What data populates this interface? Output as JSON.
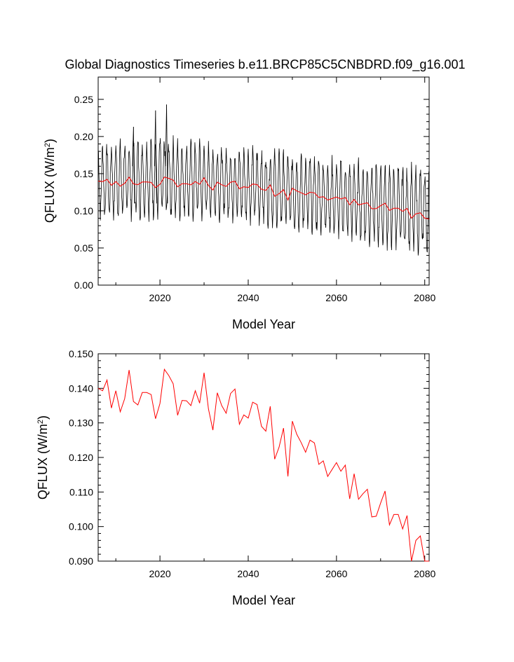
{
  "title": "Global Diagnostics Timeseries b.e11.BRCP85C5CNBDRD.f09_g16.001",
  "colors": {
    "monthly": "#000000",
    "annual": "#ff0000",
    "axis": "#000000"
  },
  "chart_data": [
    {
      "type": "line",
      "panel": "monthly-with-annual-mean",
      "xlabel": "Model Year",
      "ylabel": {
        "base": "QFLUX (W/m",
        "sup": "2",
        "close": ")"
      },
      "xlim": [
        2006,
        2081
      ],
      "ylim": [
        0.0,
        0.28
      ],
      "xticks": [
        2020,
        2040,
        2060,
        2080
      ],
      "yticks": [
        0.0,
        0.05,
        0.1,
        0.15,
        0.2,
        0.25
      ],
      "ytick_labels": [
        "0.00",
        "0.05",
        "0.10",
        "0.15",
        "0.20",
        "0.25"
      ],
      "series": [
        {
          "name": "monthly",
          "color": "#000000",
          "seasonal_cycle": {
            "years": [
              2006,
              2020,
              2040,
              2060,
              2080
            ],
            "max": [
              0.195,
              0.205,
              0.19,
              0.175,
              0.165
            ],
            "min": [
              0.085,
              0.085,
              0.08,
              0.06,
              0.035
            ]
          },
          "notable_peaks": [
            {
              "x": 2014,
              "y": 0.213
            },
            {
              "x": 2019,
              "y": 0.235
            },
            {
              "x": 2021.5,
              "y": 0.243
            }
          ]
        },
        {
          "name": "annual mean",
          "color": "#ff0000",
          "ref": "annual_means"
        }
      ]
    },
    {
      "type": "line",
      "panel": "annual-mean",
      "xlabel": "Model Year",
      "ylabel": {
        "base": "QFLUX (W/m",
        "sup": "2",
        "close": ")"
      },
      "xlim": [
        2006,
        2081
      ],
      "ylim": [
        0.09,
        0.15
      ],
      "xticks": [
        2020,
        2040,
        2060,
        2080
      ],
      "yticks": [
        0.09,
        0.1,
        0.11,
        0.12,
        0.13,
        0.14,
        0.15
      ],
      "ytick_labels": [
        "0.090",
        "0.100",
        "0.110",
        "0.120",
        "0.130",
        "0.140",
        "0.150"
      ],
      "series": [
        {
          "name": "annual mean",
          "color": "#ff0000",
          "ref": "annual_means"
        }
      ]
    }
  ],
  "annual_means": {
    "x": [
      2006,
      2007,
      2008,
      2009,
      2010,
      2011,
      2012,
      2013,
      2014,
      2015,
      2016,
      2017,
      2018,
      2019,
      2020,
      2021,
      2022,
      2023,
      2024,
      2025,
      2026,
      2027,
      2028,
      2029,
      2030,
      2031,
      2032,
      2033,
      2034,
      2035,
      2036,
      2037,
      2038,
      2039,
      2040,
      2041,
      2042,
      2043,
      2044,
      2045,
      2046,
      2047,
      2048,
      2049,
      2050,
      2051,
      2052,
      2053,
      2054,
      2055,
      2056,
      2057,
      2058,
      2059,
      2060,
      2061,
      2062,
      2063,
      2064,
      2065,
      2066,
      2067,
      2068,
      2069,
      2070,
      2071,
      2072,
      2073,
      2074,
      2075,
      2076,
      2077,
      2078,
      2079,
      2080,
      2081
    ],
    "values": [
      0.14,
      0.1393,
      0.1424,
      0.1343,
      0.1393,
      0.1332,
      0.137,
      0.1453,
      0.1362,
      0.1352,
      0.1388,
      0.1388,
      0.1382,
      0.1312,
      0.1356,
      0.1455,
      0.1437,
      0.1413,
      0.1322,
      0.1365,
      0.1364,
      0.135,
      0.1393,
      0.1357,
      0.1445,
      0.134,
      0.1279,
      0.1387,
      0.135,
      0.1328,
      0.1385,
      0.1398,
      0.1296,
      0.1323,
      0.1314,
      0.136,
      0.1353,
      0.129,
      0.1276,
      0.1348,
      0.1195,
      0.123,
      0.1285,
      0.1145,
      0.1305,
      0.1267,
      0.1243,
      0.1215,
      0.125,
      0.1242,
      0.118,
      0.119,
      0.1145,
      0.1165,
      0.1185,
      0.116,
      0.1178,
      0.108,
      0.1153,
      0.1079,
      0.1095,
      0.1108,
      0.1028,
      0.103,
      0.1068,
      0.1103,
      0.1005,
      0.1035,
      0.1035,
      0.0993,
      0.1032,
      0.09,
      0.096,
      0.0973,
      0.09,
      0.089
    ]
  }
}
